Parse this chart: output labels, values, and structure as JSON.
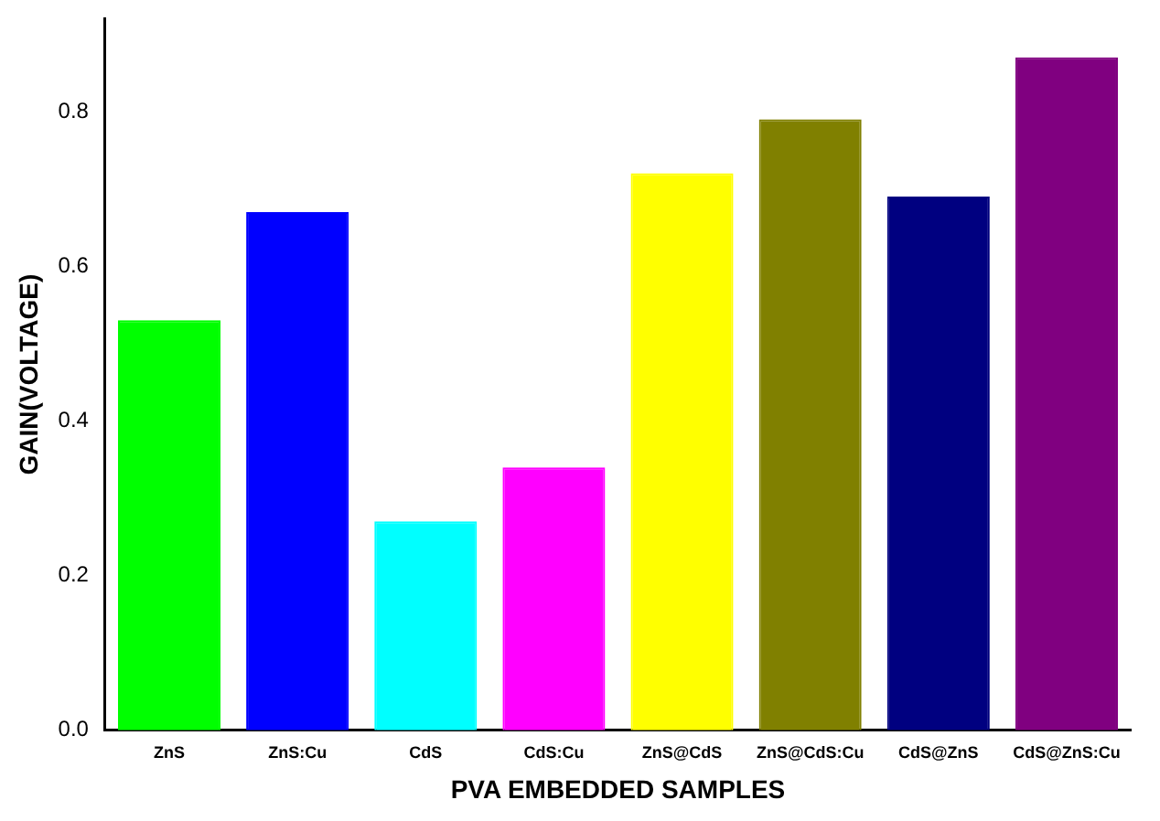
{
  "chart_data": {
    "type": "bar",
    "xlabel": "PVA EMBEDDED SAMPLES",
    "ylabel": "GAIN(VOLTAGE)",
    "categories": [
      "ZnS",
      "ZnS:Cu",
      "CdS",
      "CdS:Cu",
      "ZnS@CdS",
      "ZnS@CdS:Cu",
      "CdS@ZnS",
      "CdS@ZnS:Cu"
    ],
    "values": [
      0.53,
      0.67,
      0.27,
      0.34,
      0.72,
      0.79,
      0.69,
      0.87
    ],
    "colors": [
      "#00ff00",
      "#0000ff",
      "#00ffff",
      "#ff00ff",
      "#ffff00",
      "#808000",
      "#000080",
      "#800080"
    ],
    "ylim": [
      0,
      0.92
    ],
    "yticks": [
      {
        "value": 0,
        "label": "0.0"
      },
      {
        "value": 0.2,
        "label": "0.2"
      },
      {
        "value": 0.4,
        "label": "0.4"
      },
      {
        "value": 0.6,
        "label": "0.6"
      },
      {
        "value": 0.8,
        "label": "0.8"
      }
    ],
    "grid": false,
    "legend": false
  }
}
